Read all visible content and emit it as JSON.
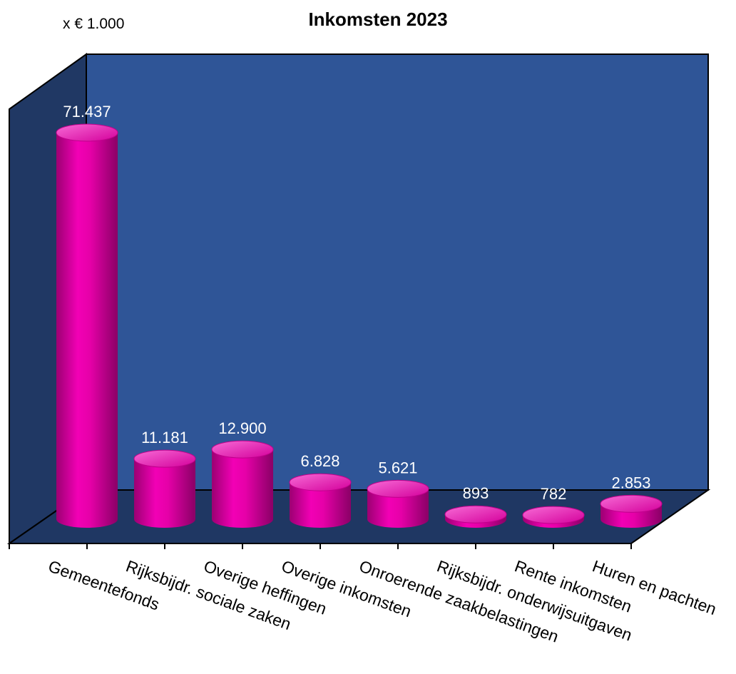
{
  "chart_data": {
    "type": "bar",
    "title": "Inkomsten 2023",
    "unit_label": "x € 1.000",
    "categories": [
      "Gemeentefonds",
      "Rijksbijdr. sociale zaken",
      "Overige heffingen",
      "Overige inkomsten",
      "Onroerende zaakbelastingen",
      "Rijksbijdr. onderwijsuitgaven",
      "Rente inkomsten",
      "Huren en pachten"
    ],
    "values": [
      71437,
      11181,
      12900,
      6828,
      5621,
      893,
      782,
      2853
    ],
    "data_labels": [
      "71.437",
      "11.181",
      "12.900",
      "6.828",
      "5.621",
      "893",
      "782",
      "2.853"
    ],
    "ylim": [
      0,
      71437
    ],
    "grid": false,
    "legend": "none",
    "colors": {
      "bar": "#e600a8",
      "bar_top": "#f04bcb",
      "bar_dark": "#9c0072",
      "back_wall": "#2f5597",
      "side_wall": "#203864",
      "floor": "#1f3763",
      "label_text": "#ffffff"
    }
  }
}
